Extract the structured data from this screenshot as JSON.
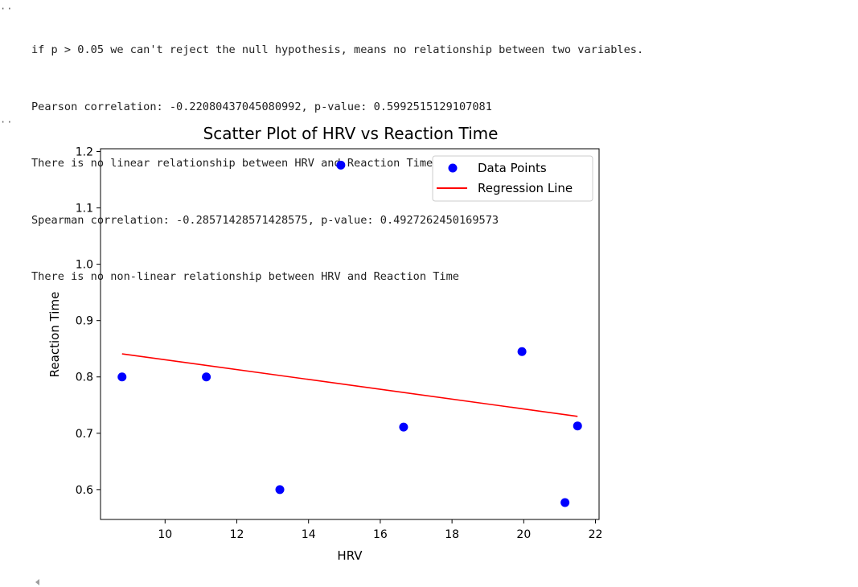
{
  "cell": {
    "gutter_top": "··",
    "gutter_mid": "··",
    "output_lines": [
      "if p > 0.05 we can't reject the null hypothesis, means no relationship between two variables.",
      "Pearson correlation: -0.22080437045080992, p-value: 0.5992515129107081",
      "There is no linear relationship between HRV and Reaction Time",
      "Spearman correlation: -0.28571428571428575, p-value: 0.4927262450169573",
      "There is no non-linear relationship between HRV and Reaction Time"
    ]
  },
  "chart_data": {
    "type": "scatter",
    "title": "Scatter Plot of HRV vs Reaction Time",
    "xlabel": "HRV",
    "ylabel": "Reaction Time",
    "xlim": [
      8.2,
      22.1
    ],
    "ylim": [
      0.547,
      1.205
    ],
    "xticks": [
      10,
      12,
      14,
      16,
      18,
      20,
      22
    ],
    "yticks": [
      0.6,
      0.7,
      0.8,
      0.9,
      1.0,
      1.1,
      1.2
    ],
    "grid": false,
    "legend_position": "top-right",
    "series": [
      {
        "name": "Data Points",
        "kind": "scatter",
        "color": "#0000ff",
        "x": [
          8.8,
          11.15,
          13.2,
          14.9,
          16.65,
          19.95,
          21.15,
          21.5
        ],
        "y": [
          0.8,
          0.8,
          0.6,
          1.176,
          0.711,
          0.845,
          0.577,
          0.713
        ]
      },
      {
        "name": "Regression Line",
        "kind": "line",
        "color": "#ff0000",
        "x": [
          8.8,
          21.5
        ],
        "y": [
          0.841,
          0.73
        ]
      }
    ]
  }
}
